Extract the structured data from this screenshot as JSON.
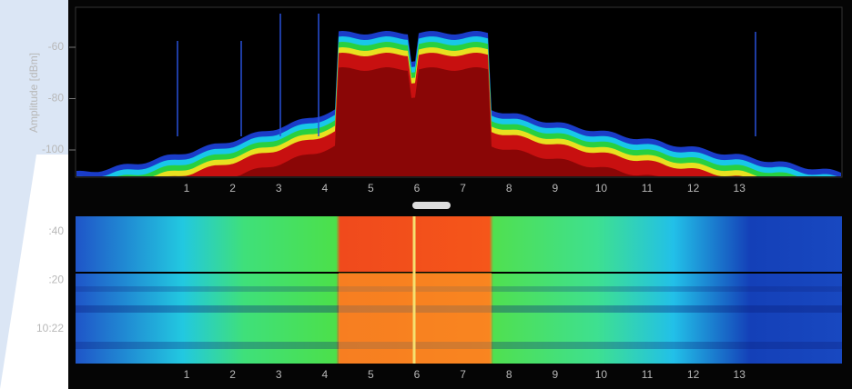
{
  "spectrum": {
    "y_axis_label": "Amplitude [dBm]",
    "y_ticks": [
      "-60",
      "-80",
      "-100"
    ],
    "channels": [
      "1",
      "2",
      "3",
      "4",
      "5",
      "6",
      "7",
      "8",
      "9",
      "10",
      "11",
      "12",
      "13"
    ]
  },
  "waterfall": {
    "time_labels": [
      ":40",
      ":20",
      "10:22"
    ],
    "channels": [
      "1",
      "2",
      "3",
      "4",
      "5",
      "6",
      "7",
      "8",
      "9",
      "10",
      "11",
      "12",
      "13"
    ]
  }
}
